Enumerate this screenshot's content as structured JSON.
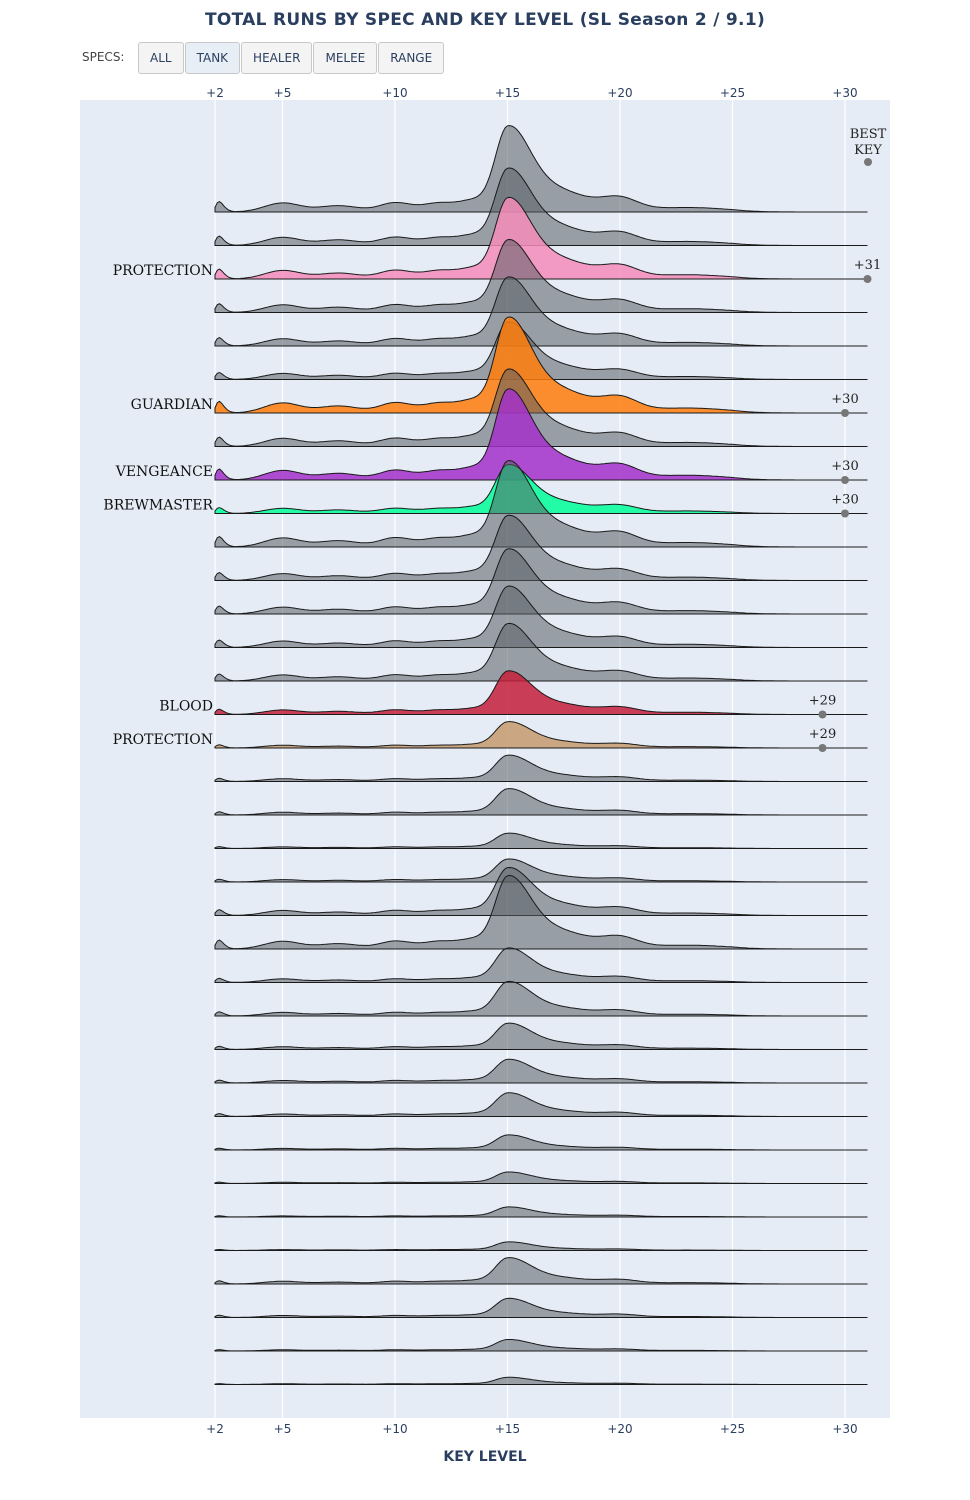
{
  "header": {
    "specs_label": "SPECS:"
  },
  "buttons": [
    {
      "label": "ALL",
      "active": false
    },
    {
      "label": "TANK",
      "active": true
    },
    {
      "label": "HEALER",
      "active": false
    },
    {
      "label": "MELEE",
      "active": false
    },
    {
      "label": "RANGE",
      "active": false
    }
  ],
  "best_key_header": {
    "line1": "BEST",
    "line2": "KEY"
  },
  "chart_data": {
    "type": "area",
    "title": "TOTAL RUNS BY SPEC AND KEY LEVEL (SL Season 2 / 9.1)",
    "xlabel": "KEY LEVEL",
    "ylabel": "",
    "xlim": [
      2,
      31
    ],
    "x_ticks": [
      2,
      5,
      10,
      15,
      20,
      25,
      30
    ],
    "x_tick_labels": [
      "+2",
      "+5",
      "+10",
      "+15",
      "+20",
      "+25",
      "+30"
    ],
    "grid": true,
    "highlight_group": "TANK",
    "series": [
      {
        "name": "",
        "highlight": false,
        "peak": 1.0,
        "scale": 0.9,
        "best_key": null
      },
      {
        "name": "",
        "highlight": false,
        "peak": 0.95,
        "scale": 0.85,
        "best_key": null
      },
      {
        "name": "PROTECTION",
        "highlight": true,
        "color": "#f48cba",
        "peak": 1.0,
        "scale": 0.85,
        "best_key": 31,
        "best_key_label": "+31"
      },
      {
        "name": "",
        "highlight": false,
        "peak": 0.95,
        "scale": 0.8,
        "best_key": null
      },
      {
        "name": "",
        "highlight": false,
        "peak": 0.9,
        "scale": 0.8,
        "best_key": null
      },
      {
        "name": "",
        "highlight": false,
        "peak": 0.8,
        "scale": 0.75,
        "best_key": null
      },
      {
        "name": "GUARDIAN",
        "highlight": true,
        "color": "#ff7c0a",
        "peak": 1.0,
        "scale": 1.0,
        "best_key": 30,
        "best_key_label": "+30"
      },
      {
        "name": "",
        "highlight": false,
        "peak": 0.95,
        "scale": 0.85,
        "best_key": null
      },
      {
        "name": "VENGEANCE",
        "highlight": true,
        "color": "#a330c9",
        "peak": 1.0,
        "scale": 0.95,
        "best_key": 30,
        "best_key_label": "+30"
      },
      {
        "name": "BREWMASTER",
        "highlight": true,
        "color": "#00ff98",
        "peak": 0.85,
        "scale": 0.6,
        "best_key": 30,
        "best_key_label": "+30"
      },
      {
        "name": "",
        "highlight": false,
        "peak": 1.0,
        "scale": 0.9,
        "best_key": null
      },
      {
        "name": "",
        "highlight": false,
        "peak": 0.85,
        "scale": 0.8,
        "best_key": null
      },
      {
        "name": "",
        "highlight": false,
        "peak": 0.85,
        "scale": 0.8,
        "best_key": null
      },
      {
        "name": "",
        "highlight": false,
        "peak": 0.8,
        "scale": 0.8,
        "best_key": null
      },
      {
        "name": "",
        "highlight": false,
        "peak": 0.75,
        "scale": 0.8,
        "best_key": null
      },
      {
        "name": "BLOOD",
        "highlight": true,
        "color": "#c41e3a",
        "peak": 0.7,
        "scale": 0.65,
        "best_key": 29,
        "best_key_label": "+29"
      },
      {
        "name": "PROTECTION",
        "highlight": true,
        "color": "#c69b6d",
        "peak": 0.55,
        "scale": 0.5,
        "best_key": 29,
        "best_key_label": "+29"
      },
      {
        "name": "",
        "highlight": false,
        "peak": 0.55,
        "scale": 0.5,
        "best_key": null
      },
      {
        "name": "",
        "highlight": false,
        "peak": 0.5,
        "scale": 0.55,
        "best_key": null
      },
      {
        "name": "",
        "highlight": false,
        "peak": 0.4,
        "scale": 0.4,
        "best_key": null
      },
      {
        "name": "",
        "highlight": false,
        "peak": 0.6,
        "scale": 0.4,
        "best_key": null
      },
      {
        "name": "",
        "highlight": false,
        "peak": 1.0,
        "scale": 0.5,
        "best_key": null
      },
      {
        "name": "",
        "highlight": false,
        "peak": 0.85,
        "scale": 0.9,
        "best_key": null
      },
      {
        "name": "",
        "highlight": false,
        "peak": 0.6,
        "scale": 0.6,
        "best_key": null
      },
      {
        "name": "",
        "highlight": false,
        "peak": 0.6,
        "scale": 0.6,
        "best_key": null
      },
      {
        "name": "",
        "highlight": false,
        "peak": 0.55,
        "scale": 0.5,
        "best_key": null
      },
      {
        "name": "",
        "highlight": false,
        "peak": 0.55,
        "scale": 0.45,
        "best_key": null
      },
      {
        "name": "",
        "highlight": false,
        "peak": 0.55,
        "scale": 0.45,
        "best_key": null
      },
      {
        "name": "",
        "highlight": false,
        "peak": 0.45,
        "scale": 0.35,
        "best_key": null
      },
      {
        "name": "",
        "highlight": false,
        "peak": 0.4,
        "scale": 0.3,
        "best_key": null
      },
      {
        "name": "",
        "highlight": false,
        "peak": 0.35,
        "scale": 0.3,
        "best_key": null
      },
      {
        "name": "",
        "highlight": false,
        "peak": 0.3,
        "scale": 0.3,
        "best_key": null
      },
      {
        "name": "",
        "highlight": false,
        "peak": 0.55,
        "scale": 0.5,
        "best_key": null
      },
      {
        "name": "",
        "highlight": false,
        "peak": 0.5,
        "scale": 0.4,
        "best_key": null
      },
      {
        "name": "",
        "highlight": false,
        "peak": 0.4,
        "scale": 0.3,
        "best_key": null
      },
      {
        "name": "",
        "highlight": false,
        "peak": 0.3,
        "scale": 0.25,
        "best_key": null
      }
    ]
  }
}
